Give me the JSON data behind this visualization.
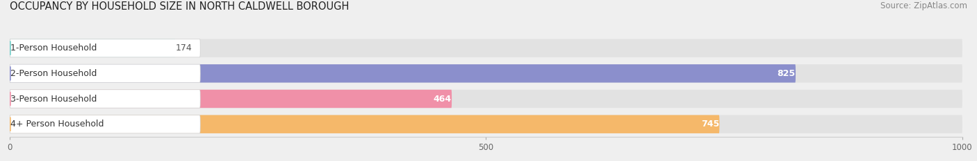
{
  "title": "OCCUPANCY BY HOUSEHOLD SIZE IN NORTH CALDWELL BOROUGH",
  "source": "Source: ZipAtlas.com",
  "categories": [
    "1-Person Household",
    "2-Person Household",
    "3-Person Household",
    "4+ Person Household"
  ],
  "values": [
    174,
    825,
    464,
    745
  ],
  "bar_colors": [
    "#72cdc8",
    "#8b8fcc",
    "#f090a8",
    "#f5b86a"
  ],
  "xlim": [
    0,
    1000
  ],
  "xticks": [
    0,
    500,
    1000
  ],
  "background_color": "#efefef",
  "bar_bg_color": "#e2e2e2",
  "title_fontsize": 10.5,
  "source_fontsize": 8.5,
  "value_fontsize": 9,
  "label_fontsize": 9
}
